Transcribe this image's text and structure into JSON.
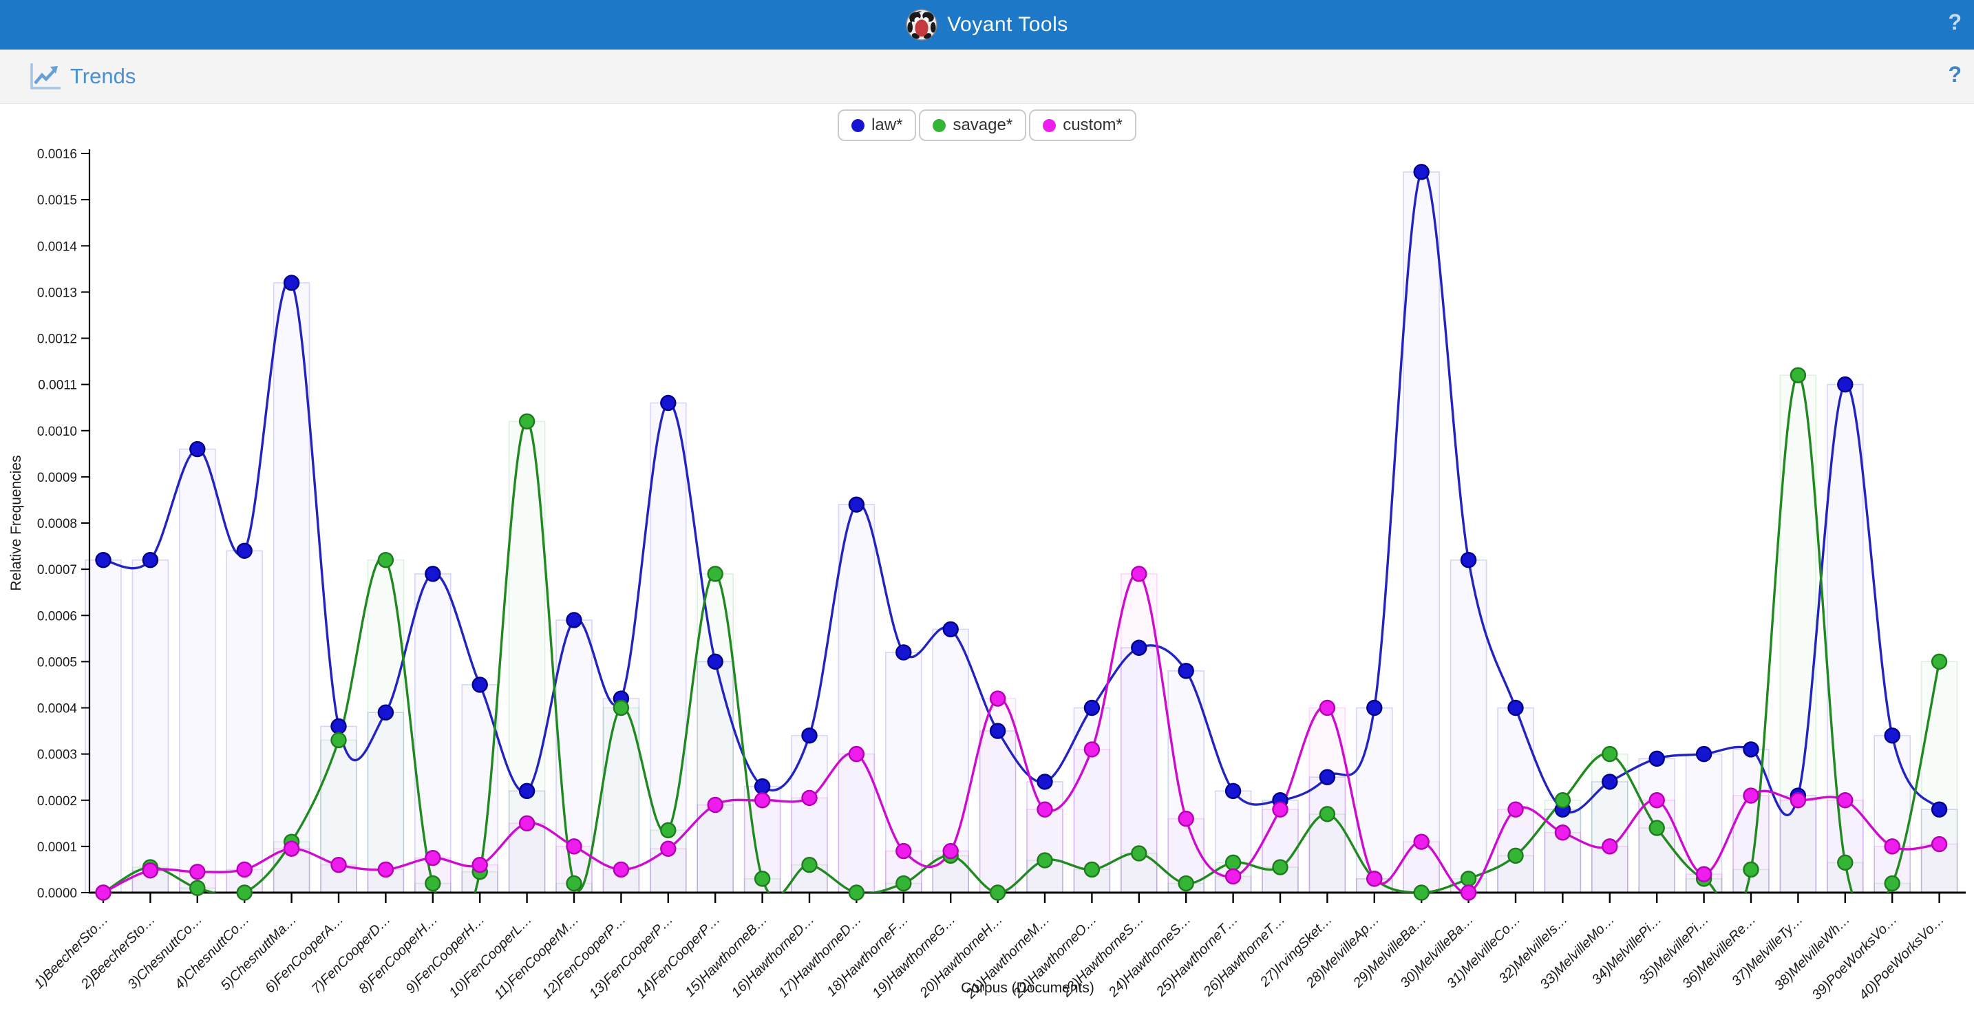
{
  "header": {
    "title": "Voyant Tools",
    "help_label": "?"
  },
  "toolbar": {
    "title": "Trends",
    "help_label": "?"
  },
  "chart_data": {
    "type": "line",
    "title": "",
    "xlabel": "Corpus (Documents)",
    "ylabel": "Relative Frequencies",
    "ylim": [
      0,
      0.0016
    ],
    "ytick_step": 0.0001,
    "ytick_labels": [
      "0.0000",
      "0.0001",
      "0.0002",
      "0.0003",
      "0.0004",
      "0.0005",
      "0.0006",
      "0.0007",
      "0.0008",
      "0.0009",
      "0.0010",
      "0.0011",
      "0.0012",
      "0.0013",
      "0.0014",
      "0.0015",
      "0.0016"
    ],
    "grid": false,
    "legend_position": "top-center",
    "curve": "spline",
    "categories": [
      "1)BeecherSto…",
      "2)BeecherSto…",
      "3)ChesnuttCo…",
      "4)ChesnuttCo…",
      "5)ChesnuttMa…",
      "6)FenCooperA…",
      "7)FenCooperD…",
      "8)FenCooperH…",
      "9)FenCooperH…",
      "10)FenCooperL…",
      "11)FenCooperM…",
      "12)FenCooperP…",
      "13)FenCooperP…",
      "14)FenCooperP…",
      "15)HawthorneB…",
      "16)HawthorneD…",
      "17)HawthorneD…",
      "18)HawthorneF…",
      "19)HawthorneG…",
      "20)HawthorneH…",
      "21)HawthorneM…",
      "22)HawthorneO…",
      "23)HawthorneS…",
      "24)HawthorneS…",
      "25)HawthorneT…",
      "26)HawthorneT…",
      "27)IrvingSket…",
      "28)MelvilleAp…",
      "29)MelvilleBa…",
      "30)MelvilleBa…",
      "31)MelvilleCo…",
      "32)MelvilleIs…",
      "33)MelvilleMo…",
      "34)MelvillePi…",
      "35)MelvillePi…",
      "36)MelvilleRe…",
      "37)MelvilleTy…",
      "38)MelvilleWh…",
      "39)PoeWorksVo…",
      "40)PoeWorksVo…"
    ],
    "series": [
      {
        "name": "law*",
        "dot_color": "#1414d2",
        "dot_edge": "#00008c",
        "line_color": "#2323c0",
        "values": [
          0.00072,
          0.00072,
          0.00096,
          0.00074,
          0.00132,
          0.00036,
          0.00039,
          0.00069,
          0.00045,
          0.00022,
          0.00059,
          0.00042,
          0.00106,
          0.0005,
          0.00023,
          0.00034,
          0.00084,
          0.00052,
          0.00057,
          0.00035,
          0.00024,
          0.0004,
          0.00053,
          0.00048,
          0.00022,
          0.0002,
          0.00025,
          0.0004,
          0.00156,
          0.00072,
          0.0004,
          0.00018,
          0.00024,
          0.00029,
          0.0003,
          0.00031,
          0.00021,
          0.0011,
          0.00034,
          0.00018
        ]
      },
      {
        "name": "savage*",
        "dot_color": "#35b535",
        "dot_edge": "#1d7a1d",
        "line_color": "#208a20",
        "values": [
          0.0,
          5.5e-05,
          1e-05,
          0.0,
          0.00011,
          0.00033,
          0.00072,
          2e-05,
          4.5e-05,
          0.00102,
          2e-05,
          0.0004,
          0.000135,
          0.00069,
          3e-05,
          6e-05,
          0.0,
          2e-05,
          8e-05,
          0.0,
          7e-05,
          5e-05,
          8.5e-05,
          2e-05,
          6.5e-05,
          5.5e-05,
          0.00017,
          3e-05,
          0.0,
          3e-05,
          8e-05,
          0.0002,
          0.0003,
          0.00014,
          3e-05,
          5e-05,
          0.00112,
          6.5e-05,
          2e-05,
          0.0005
        ]
      },
      {
        "name": "custom*",
        "dot_color": "#ee1dee",
        "dot_edge": "#b300b3",
        "line_color": "#ce0cce",
        "values": [
          0.0,
          4.8e-05,
          4.5e-05,
          5e-05,
          9.5e-05,
          6e-05,
          5e-05,
          7.5e-05,
          6e-05,
          0.00015,
          0.0001,
          5e-05,
          9.5e-05,
          0.00019,
          0.0002,
          0.000205,
          0.0003,
          9e-05,
          9e-05,
          0.00042,
          0.00018,
          0.00031,
          0.00069,
          0.00016,
          3.5e-05,
          0.00018,
          0.0004,
          3e-05,
          0.00011,
          0.0,
          0.00018,
          0.00013,
          0.0001,
          0.0002,
          4e-05,
          0.00021,
          0.0002,
          0.0002,
          0.0001,
          0.000105
        ]
      }
    ]
  }
}
